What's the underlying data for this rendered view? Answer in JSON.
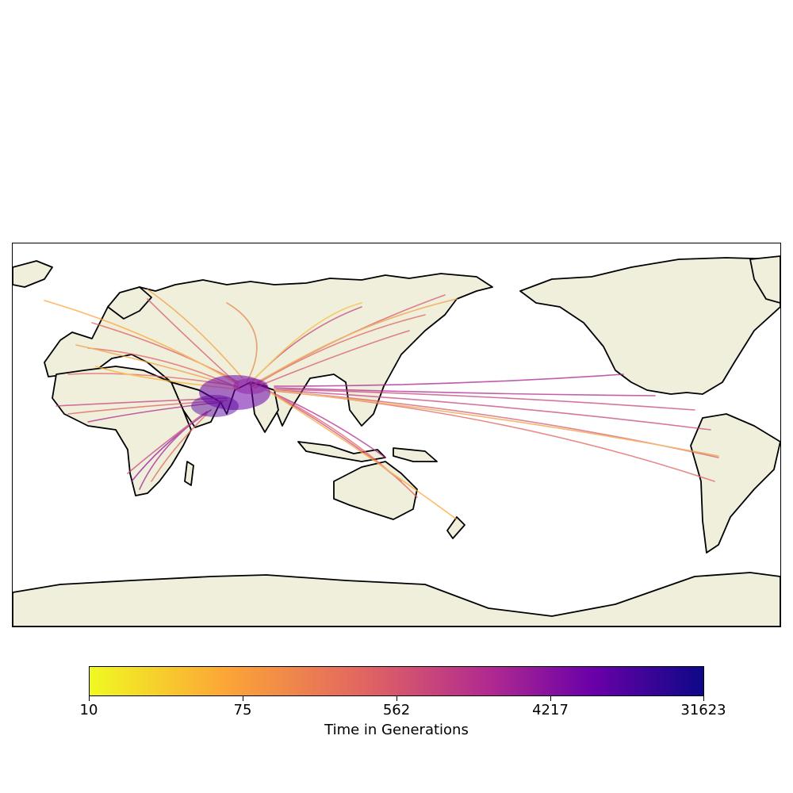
{
  "colors": {
    "land": "#efefdc",
    "coast": "#000000",
    "ocean": "#ffffff",
    "colormap": [
      "#f0f921",
      "#fca636",
      "#e16462",
      "#b12a90",
      "#6a00a8",
      "#0d0887"
    ]
  },
  "colorbar": {
    "label": "Time in Generations",
    "ticks": [
      "10",
      "75",
      "562",
      "4217",
      "31623"
    ],
    "scale": "log",
    "range": [
      10,
      31623
    ]
  },
  "map": {
    "projection": "PlateCarree, centered near 150°E",
    "hub_region": "Arabian Sea / South Asia",
    "route_groups": [
      "Europe",
      "North Africa",
      "West Africa",
      "Southern Africa",
      "Siberia / Northeast Asia",
      "Southeast Asia",
      "Australia / New Zealand",
      "Central America",
      "South America"
    ]
  }
}
